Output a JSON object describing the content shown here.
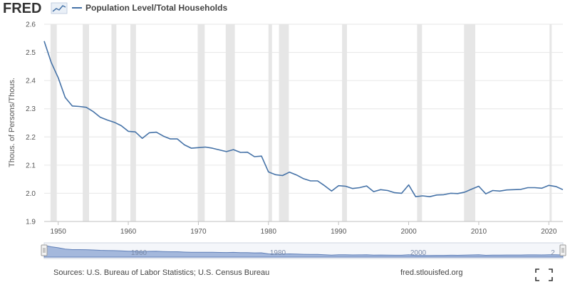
{
  "header": {
    "logo_text": "FRED",
    "legend_label": "Population Level/Total Households",
    "series_color": "#4572a7"
  },
  "footer": {
    "sources": "Sources: U.S. Bureau of Labor Statistics; U.S. Census Bureau",
    "site": "fred.stlouisfed.org"
  },
  "navigator": {
    "labels": [
      "1960",
      "1980",
      "2000",
      "2"
    ]
  },
  "colors": {
    "line": "#4572a7",
    "recession": "#e6e6e6",
    "grid": "#e6e6e6",
    "navigator_fill": "#8aa3d1"
  },
  "chart_data": {
    "type": "line",
    "title": "",
    "xlabel": "",
    "ylabel": "Thous. of Persons/Thous.",
    "xlim": [
      1948,
      2022
    ],
    "ylim": [
      1.9,
      2.6
    ],
    "yticks": [
      "1.9",
      "2.0",
      "2.1",
      "2.2",
      "2.3",
      "2.4",
      "2.5",
      "2.6"
    ],
    "xticks": [
      "1950",
      "1960",
      "1970",
      "1980",
      "1990",
      "2000",
      "2010",
      "2020"
    ],
    "grid": true,
    "legend": "top-left",
    "series": [
      {
        "name": "Population Level/Total Households",
        "x": [
          1948,
          1949,
          1950,
          1951,
          1952,
          1953,
          1954,
          1955,
          1956,
          1957,
          1958,
          1959,
          1960,
          1961,
          1962,
          1963,
          1964,
          1965,
          1966,
          1967,
          1968,
          1969,
          1970,
          1971,
          1972,
          1973,
          1974,
          1975,
          1976,
          1977,
          1978,
          1979,
          1980,
          1981,
          1982,
          1983,
          1984,
          1985,
          1986,
          1987,
          1988,
          1989,
          1990,
          1991,
          1992,
          1993,
          1994,
          1995,
          1996,
          1997,
          1998,
          1999,
          2000,
          2001,
          2002,
          2003,
          2004,
          2005,
          2006,
          2007,
          2008,
          2009,
          2010,
          2011,
          2012,
          2013,
          2014,
          2015,
          2016,
          2017,
          2018,
          2019,
          2020,
          2021,
          2022
        ],
        "values": [
          2.54,
          2.465,
          2.41,
          2.34,
          2.31,
          2.308,
          2.305,
          2.29,
          2.27,
          2.26,
          2.252,
          2.24,
          2.22,
          2.218,
          2.195,
          2.215,
          2.217,
          2.203,
          2.193,
          2.193,
          2.172,
          2.16,
          2.162,
          2.164,
          2.16,
          2.154,
          2.148,
          2.155,
          2.145,
          2.146,
          2.13,
          2.132,
          2.076,
          2.066,
          2.063,
          2.075,
          2.065,
          2.052,
          2.044,
          2.044,
          2.027,
          2.008,
          2.027,
          2.025,
          2.017,
          2.02,
          2.026,
          2.006,
          2.013,
          2.01,
          2.002,
          2.0,
          2.03,
          1.988,
          1.991,
          1.988,
          1.994,
          1.995,
          2.0,
          1.999,
          2.004,
          2.015,
          2.025,
          1.998,
          2.01,
          2.008,
          2.012,
          2.013,
          2.014,
          2.02,
          2.02,
          2.018,
          2.028,
          2.024,
          2.013
        ]
      }
    ],
    "recessions": [
      [
        1948.9,
        1949.8
      ],
      [
        1953.5,
        1954.4
      ],
      [
        1957.6,
        1958.3
      ],
      [
        1960.3,
        1961.1
      ],
      [
        1969.9,
        1970.9
      ],
      [
        1973.9,
        1975.2
      ],
      [
        1980.0,
        1980.5
      ],
      [
        1981.5,
        1982.9
      ],
      [
        1990.5,
        1991.2
      ],
      [
        2001.2,
        2001.9
      ],
      [
        2007.9,
        2009.5
      ],
      [
        2020.1,
        2020.4
      ]
    ]
  }
}
